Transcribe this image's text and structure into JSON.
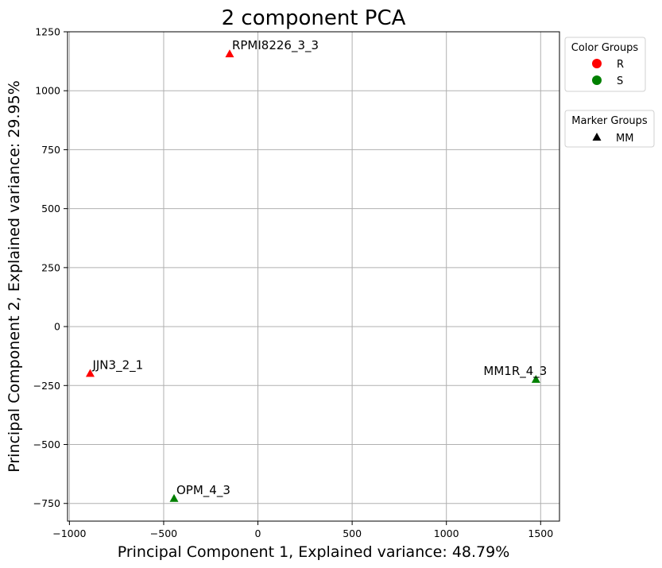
{
  "chart_data": {
    "type": "scatter",
    "title": "2 component PCA",
    "xlabel": "Principal Component 1, Explained variance: 48.79%",
    "ylabel": "Principal Component 2, Explained variance: 29.95%",
    "xlim": [
      -1010,
      1600
    ],
    "ylim": [
      -825,
      1250
    ],
    "xticks": [
      -1000,
      -500,
      0,
      500,
      1000,
      1500
    ],
    "yticks": [
      -750,
      -500,
      -250,
      0,
      250,
      500,
      750,
      1000,
      1250
    ],
    "xtick_labels": [
      "−1000",
      "−500",
      "0",
      "500",
      "1000",
      "1500"
    ],
    "ytick_labels": [
      "−750",
      "−500",
      "−250",
      "0",
      "250",
      "500",
      "750",
      "1000",
      "1250"
    ],
    "grid": true,
    "points": [
      {
        "label": "RPMI8226_3_3",
        "x": -150,
        "y": 1155,
        "color_group": "R",
        "marker_group": "MM",
        "label_anchor": "start"
      },
      {
        "label": "JJN3_2_1",
        "x": -890,
        "y": -200,
        "color_group": "R",
        "marker_group": "MM",
        "label_anchor": "start"
      },
      {
        "label": "OPM_4_3",
        "x": -445,
        "y": -730,
        "color_group": "S",
        "marker_group": "MM",
        "label_anchor": "start"
      },
      {
        "label": "MM1R_4_3",
        "x": 1475,
        "y": -225,
        "color_group": "S",
        "marker_group": "MM",
        "label_anchor": "end"
      }
    ],
    "color_legend": {
      "title": "Color Groups",
      "entries": [
        {
          "name": "R",
          "color": "#ff0000"
        },
        {
          "name": "S",
          "color": "#008000"
        }
      ]
    },
    "marker_legend": {
      "title": "Marker Groups",
      "entries": [
        {
          "name": "MM",
          "marker": "triangle"
        }
      ]
    },
    "legend_placement": "outside-right"
  }
}
